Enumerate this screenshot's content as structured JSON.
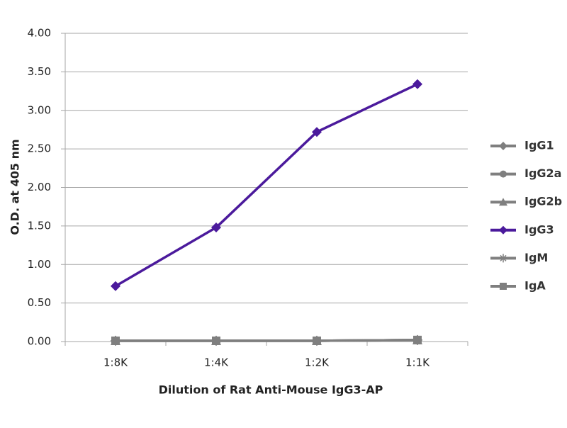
{
  "chart_data": {
    "type": "line",
    "x_label": "Dilution of Rat Anti-Mouse IgG3-AP",
    "y_label": "O.D. at 405 nm",
    "categories": [
      "1:8K",
      "1:4K",
      "1:2K",
      "1:1K"
    ],
    "series": [
      {
        "name": "IgG1",
        "color": "#7f7f7f",
        "marker": "diamond",
        "values": [
          0.01,
          0.01,
          0.01,
          0.02
        ]
      },
      {
        "name": "IgG2a",
        "color": "#7f7f7f",
        "marker": "circle",
        "values": [
          0.01,
          0.01,
          0.01,
          0.02
        ]
      },
      {
        "name": "IgG2b",
        "color": "#7f7f7f",
        "marker": "triangle",
        "values": [
          0.01,
          0.01,
          0.01,
          0.02
        ]
      },
      {
        "name": "IgG3",
        "color": "#4b1a9c",
        "marker": "diamond",
        "values": [
          0.72,
          1.48,
          2.72,
          3.34
        ]
      },
      {
        "name": "IgM",
        "color": "#7f7f7f",
        "marker": "star",
        "values": [
          0.01,
          0.01,
          0.01,
          0.02
        ]
      },
      {
        "name": "IgA",
        "color": "#7f7f7f",
        "marker": "square",
        "values": [
          0.01,
          0.01,
          0.01,
          0.02
        ]
      }
    ],
    "ylim": [
      0,
      4
    ],
    "yticks": [
      {
        "value": 0,
        "label": "0.00"
      },
      {
        "value": 0.5,
        "label": "0.50"
      },
      {
        "value": 1,
        "label": "1.00"
      },
      {
        "value": 1.5,
        "label": "1.50"
      },
      {
        "value": 2,
        "label": "2.00"
      },
      {
        "value": 2.5,
        "label": "2.50"
      },
      {
        "value": 3,
        "label": "3.00"
      },
      {
        "value": 3.5,
        "label": "3.50"
      },
      {
        "value": 4,
        "label": "4.00"
      }
    ],
    "grid": true,
    "legend": "right"
  }
}
